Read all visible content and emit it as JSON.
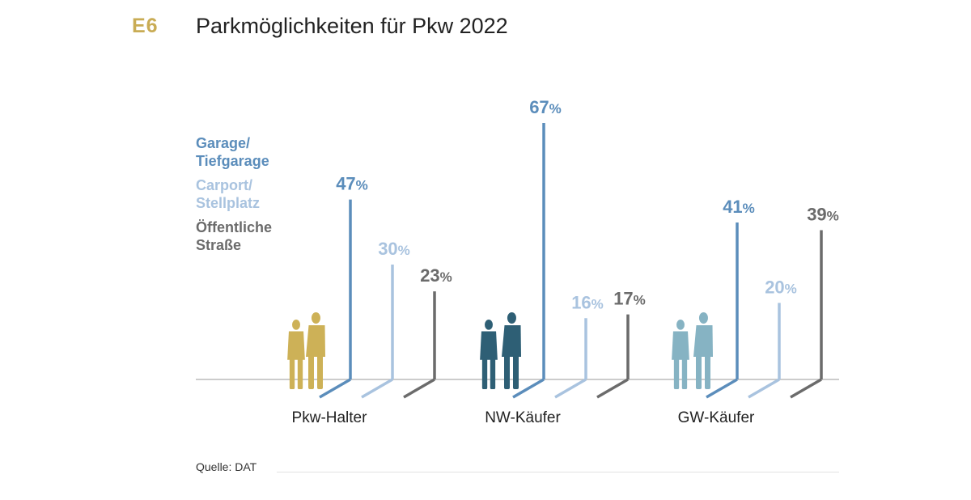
{
  "header": {
    "figure_id": "E6",
    "title": "Parkmöglichkeiten für Pkw 2022"
  },
  "source": "Quelle: DAT",
  "colors": {
    "accent": "#c9ac55",
    "garage": "#5b8dbb",
    "carport": "#a9c3df",
    "strasse": "#6b6b6b",
    "baseline": "#bcbcbc",
    "people": [
      "#cdb157",
      "#2e5f75",
      "#86b3c3"
    ]
  },
  "chart_data": {
    "type": "bar",
    "title": "Parkmöglichkeiten für Pkw 2022",
    "categories": [
      "Pkw-Halter",
      "NW-Käufer",
      "GW-Käufer"
    ],
    "unit": "%",
    "series": [
      {
        "name": "Garage/ Tiefgarage",
        "name_lines": [
          "Garage/",
          "Tiefgarage"
        ],
        "values": [
          47,
          67,
          41
        ]
      },
      {
        "name": "Carport/ Stellplatz",
        "name_lines": [
          "Carport/",
          "Stellplatz"
        ],
        "values": [
          30,
          16,
          20
        ]
      },
      {
        "name": "Öffentliche Straße",
        "name_lines": [
          "Öffentliche",
          "Straße"
        ],
        "values": [
          23,
          17,
          39
        ]
      }
    ],
    "ylim": [
      0,
      67
    ],
    "grid": false,
    "legend_position": "left"
  }
}
